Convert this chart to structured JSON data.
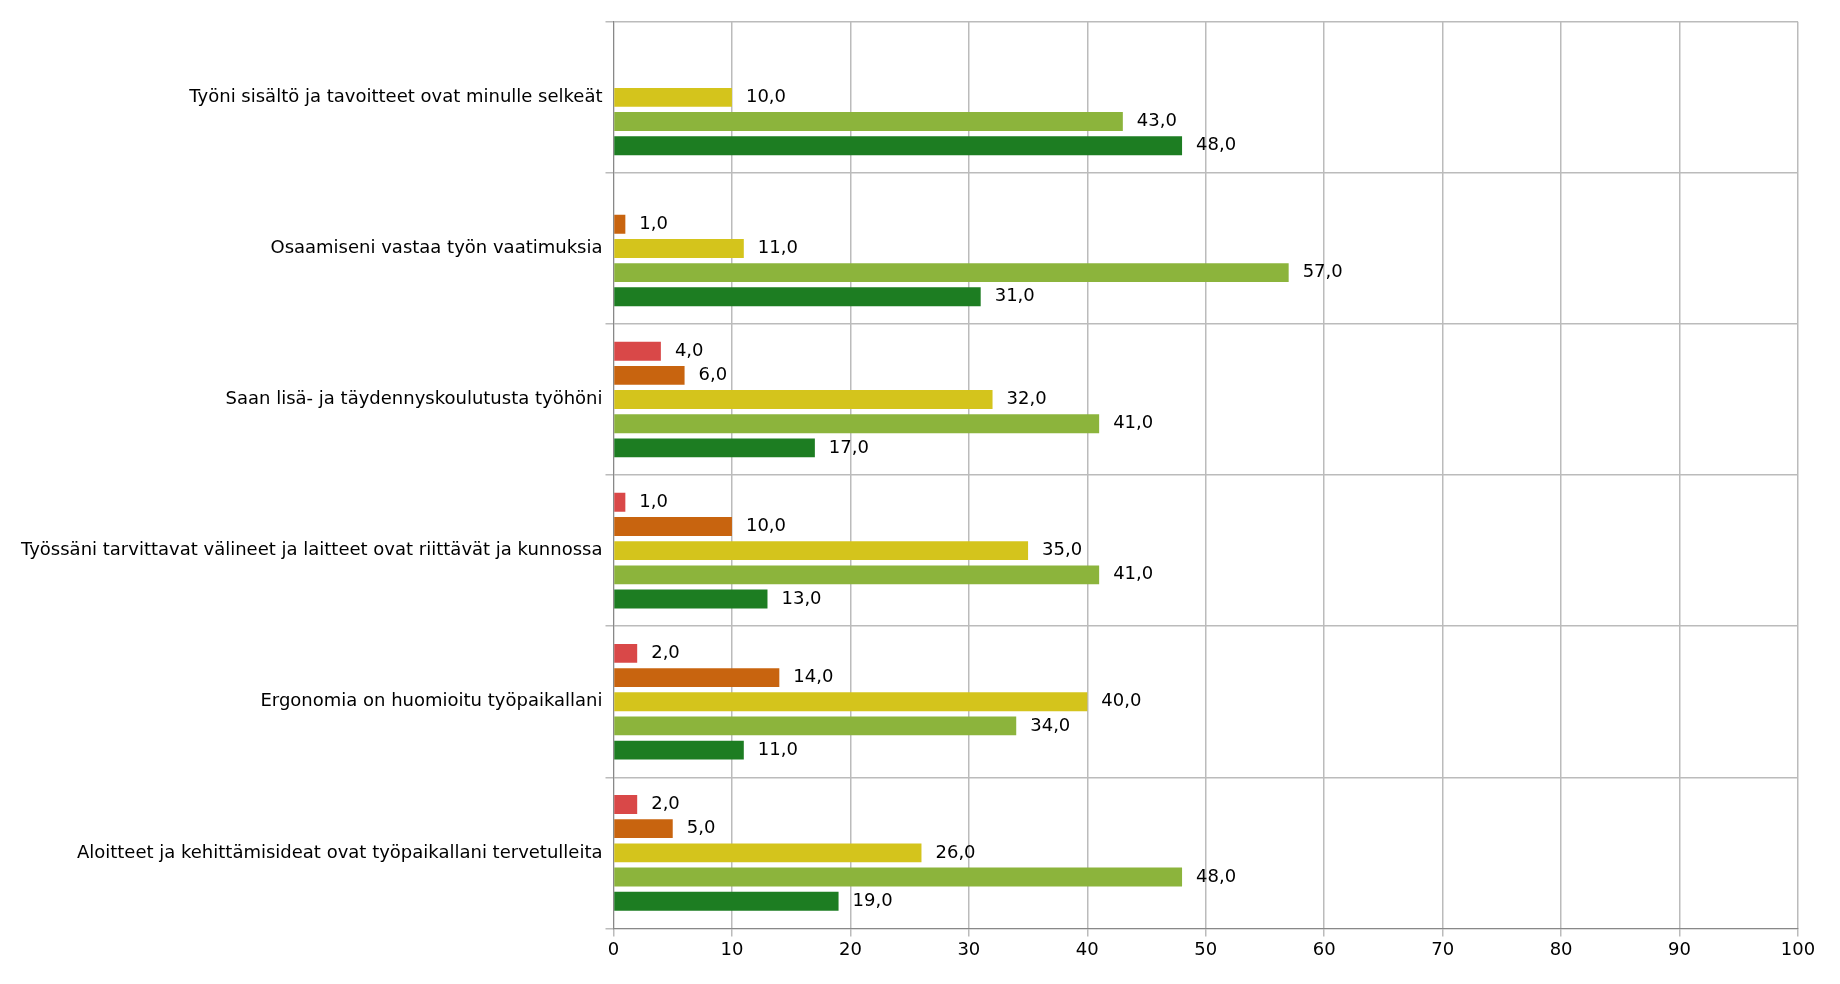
{
  "chart_data": {
    "type": "bar",
    "orientation": "horizontal",
    "categories": [
      "Työni sisältö ja tavoitteet ovat minulle selkeät",
      "Osaamiseni vastaa työn vaatimuksia",
      "Saan lisä- ja täydennyskoulutusta työhöni",
      "Työssäni tarvittavat välineet ja laitteet ovat riittävät ja kunnossa",
      "Ergonomia on huomioitu työpaikallani",
      "Aloitteet ja kehittämisideat ovat työpaikallani tervetulleita"
    ],
    "series": [
      {
        "color": "#d94848",
        "values": [
          null,
          null,
          4,
          1,
          2,
          2
        ],
        "value_labels": [
          null,
          null,
          "4,0",
          "1,0",
          "2,0",
          "2,0"
        ]
      },
      {
        "color": "#c8640f",
        "values": [
          null,
          1,
          6,
          10,
          14,
          5
        ],
        "value_labels": [
          null,
          "1,0",
          "6,0",
          "10,0",
          "14,0",
          "5,0"
        ]
      },
      {
        "color": "#d4c41c",
        "values": [
          10,
          11,
          32,
          35,
          40,
          26
        ],
        "value_labels": [
          "10,0",
          "11,0",
          "32,0",
          "35,0",
          "40,0",
          "26,0"
        ]
      },
      {
        "color": "#8cb43c",
        "values": [
          43,
          57,
          41,
          41,
          34,
          48
        ],
        "value_labels": [
          "43,0",
          "57,0",
          "41,0",
          "41,0",
          "34,0",
          "48,0"
        ]
      },
      {
        "color": "#1d7d22",
        "values": [
          48,
          31,
          17,
          13,
          11,
          19
        ],
        "value_labels": [
          "48,0",
          "31,0",
          "17,0",
          "13,0",
          "11,0",
          "19,0"
        ]
      }
    ],
    "xlim": [
      0,
      100
    ],
    "xticks": [
      0,
      10,
      20,
      30,
      40,
      50,
      60,
      70,
      80,
      90,
      100
    ],
    "grid": true,
    "legend": false
  }
}
